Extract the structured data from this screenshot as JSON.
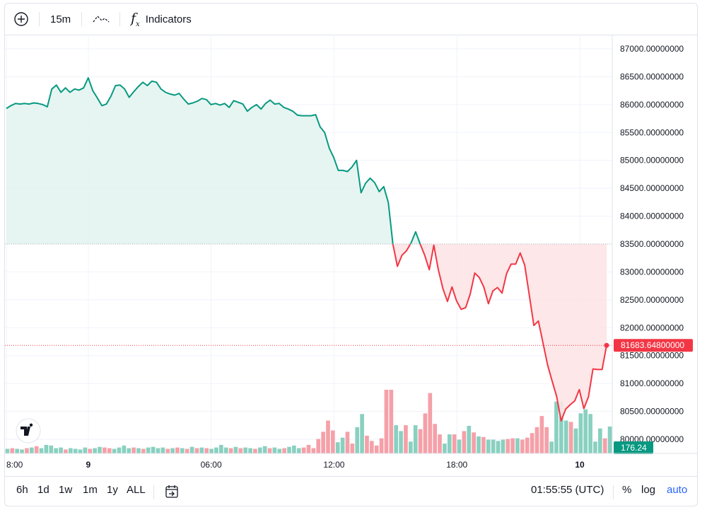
{
  "toolbar": {
    "add_icon": "plus-circle-icon",
    "interval": "15m",
    "chart_type_icon": "line-chart-icon",
    "indicators_icon": "fx-icon",
    "indicators_label": "Indicators"
  },
  "bottombar": {
    "ranges": [
      "6h",
      "1d",
      "1w",
      "1m",
      "1y",
      "ALL"
    ],
    "goto_icon": "calendar-goto-icon",
    "clock": "01:55:55 (UTC)",
    "percent": "%",
    "log": "log",
    "auto": "auto"
  },
  "badges": {
    "price": "81683.64800000",
    "volume": "176.24"
  },
  "colors": {
    "up": "#089981",
    "down": "#f23645",
    "up_fill": "#e3f4ef",
    "down_fill": "#fde4e6",
    "vol_up": "#89d0c0",
    "vol_down": "#f5a0a8",
    "auto": "#2962ff"
  },
  "logo": "tradingview-logo",
  "chart_data": {
    "type": "line",
    "baseline": 83500,
    "last_price": 81683.648,
    "ylim": [
      79700,
      87300
    ],
    "yticks": [
      87000,
      86500,
      86000,
      85500,
      85000,
      84500,
      84000,
      83500,
      83000,
      82500,
      82000,
      81500,
      81000,
      80500,
      80000
    ],
    "ytick_labels": [
      "87000.00000000",
      "86500.00000000",
      "86000.00000000",
      "85500.00000000",
      "85000.00000000",
      "84500.00000000",
      "84000.00000000",
      "83500.00000000",
      "83000.00000000",
      "82500.00000000",
      "82000.00000000",
      "81500.00000000",
      "81000.00000000",
      "80500.00000000",
      "80000.00000000"
    ],
    "xtick_labels": [
      {
        "label": "8:00",
        "hour": 0
      },
      {
        "label": "9",
        "hour": 4
      },
      {
        "label": "06:00",
        "hour": 10
      },
      {
        "label": "12:00",
        "hour": 16
      },
      {
        "label": "18:00",
        "hour": 22
      },
      {
        "label": "10",
        "hour": 28
      }
    ],
    "series": [
      {
        "values": [
          85930,
          85980,
          86020,
          86010,
          86020,
          86010,
          86030,
          86020,
          86000,
          85960,
          86280,
          86350,
          86220,
          86300,
          86220,
          86280,
          86260,
          86300,
          86480,
          86250,
          86120,
          85980,
          86010,
          86150,
          86340,
          86350,
          86280,
          86130,
          86230,
          86320,
          86400,
          86340,
          86420,
          86400,
          86280,
          86220,
          86190,
          86170,
          86200,
          86100,
          86010,
          86030,
          86060,
          86110,
          86090,
          86000,
          86020,
          85990,
          86020,
          85950,
          86070,
          86040,
          86010,
          85880,
          85950,
          86000,
          85920,
          86020,
          86080,
          86010,
          86020,
          85950,
          85920,
          85880,
          85810,
          85800,
          85800,
          85800,
          85820,
          85600,
          85500,
          85220,
          85050,
          84820,
          84820,
          84800,
          84880,
          85000,
          84420,
          84590,
          84680,
          84600,
          84440,
          84530,
          84240,
          83500,
          83100,
          83300,
          83380,
          83520,
          83720,
          83500,
          83300,
          83040,
          83480,
          83040,
          82700,
          82470,
          82730,
          82480,
          82330,
          82360,
          82600,
          82980,
          82900,
          82730,
          82430,
          82660,
          82720,
          82620,
          82970,
          83140,
          83140,
          83340,
          83120,
          82580,
          82040,
          82120,
          81730,
          81340,
          81050,
          80770,
          80330,
          80540,
          80620,
          80690,
          80890,
          80550,
          80760,
          81260,
          81250,
          81250,
          81683.648
        ]
      }
    ],
    "volume": {
      "values": [
        7,
        8,
        7,
        6,
        8,
        9,
        11,
        8,
        13,
        12,
        8,
        9,
        6,
        8,
        7,
        6,
        9,
        7,
        8,
        10,
        9,
        8,
        7,
        9,
        12,
        8,
        9,
        8,
        7,
        9,
        10,
        8,
        9,
        7,
        8,
        9,
        8,
        7,
        10,
        8,
        9,
        8,
        7,
        9,
        13,
        9,
        8,
        10,
        8,
        9,
        8,
        7,
        9,
        11,
        8,
        9,
        7,
        8,
        10,
        12,
        8,
        9,
        13,
        8,
        22,
        33,
        50,
        35,
        17,
        24,
        33,
        15,
        40,
        60,
        27,
        19,
        12,
        23,
        97,
        97,
        43,
        34,
        43,
        18,
        43,
        37,
        61,
        92,
        45,
        29,
        15,
        29,
        29,
        21,
        34,
        42,
        32,
        26,
        25,
        21,
        21,
        19,
        21,
        22,
        23,
        23,
        21,
        24,
        31,
        40,
        57,
        40,
        18,
        79,
        79,
        50,
        48,
        38,
        61,
        67,
        60,
        18,
        38,
        23,
        41
      ],
      "up": [
        1,
        0,
        1,
        1,
        0,
        1,
        0,
        1,
        1,
        1,
        1,
        1,
        0,
        1,
        1,
        1,
        1,
        0,
        1,
        1,
        0,
        0,
        1,
        1,
        1,
        1,
        0,
        1,
        0,
        1,
        1,
        1,
        1,
        0,
        1,
        0,
        1,
        0,
        1,
        0,
        1,
        0,
        1,
        1,
        1,
        1,
        0,
        1,
        0,
        1,
        1,
        0,
        1,
        1,
        0,
        1,
        1,
        0,
        1,
        1,
        1,
        0,
        0,
        0,
        0,
        0,
        0,
        0,
        1,
        1,
        0,
        0,
        1,
        1,
        0,
        0,
        0,
        0,
        0,
        0,
        1,
        1,
        0,
        1,
        1,
        0,
        0,
        0,
        0,
        0,
        1,
        1,
        0,
        1,
        0,
        1,
        0,
        1,
        0,
        1,
        1,
        1,
        1,
        0,
        0,
        1,
        0,
        0,
        0,
        0,
        0,
        0,
        1,
        1,
        1,
        1,
        0,
        1,
        1,
        1,
        1,
        1,
        1,
        0,
        1
      ],
      "last": "176.24"
    }
  }
}
